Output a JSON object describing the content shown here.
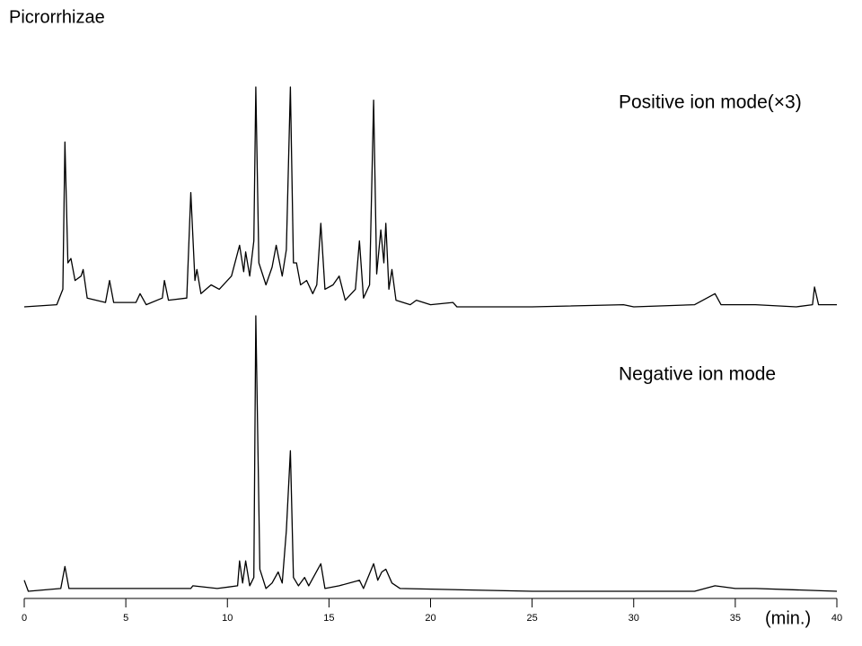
{
  "chart_data": [
    {
      "type": "line",
      "title": "Picrorrhizae",
      "annotation": "Positive ion mode(×3)",
      "color": "#000000",
      "xlim": [
        0,
        40
      ],
      "ylim": [
        0,
        100
      ],
      "x": [
        0,
        1.6,
        1.9,
        2.0,
        2.15,
        2.3,
        2.5,
        2.8,
        2.9,
        3.1,
        4.0,
        4.2,
        4.4,
        5.5,
        5.7,
        6.0,
        6.8,
        6.9,
        7.1,
        8.0,
        8.2,
        8.4,
        8.5,
        8.7,
        9.2,
        9.6,
        10.2,
        10.6,
        10.8,
        10.9,
        11.1,
        11.3,
        11.4,
        11.55,
        11.9,
        12.2,
        12.4,
        12.7,
        12.9,
        13.1,
        13.25,
        13.4,
        13.6,
        13.9,
        14.2,
        14.4,
        14.6,
        14.8,
        15.2,
        15.5,
        15.8,
        16.3,
        16.5,
        16.7,
        17.0,
        17.2,
        17.35,
        17.55,
        17.7,
        17.8,
        17.95,
        18.1,
        18.3,
        19.0,
        19.3,
        20.0,
        21.1,
        21.3,
        25.0,
        29.5,
        30.0,
        33.0,
        34.0,
        34.3,
        36.0,
        38.0,
        38.8,
        38.9,
        39.1,
        40.0
      ],
      "values": [
        0,
        1,
        8,
        75,
        20,
        22,
        12,
        14,
        17,
        4,
        2,
        12,
        2,
        2,
        6,
        1,
        4,
        12,
        3,
        4,
        52,
        12,
        17,
        6,
        10,
        8,
        14,
        28,
        16,
        25,
        14,
        30,
        100,
        20,
        10,
        18,
        28,
        14,
        26,
        100,
        20,
        20,
        10,
        12,
        6,
        10,
        38,
        8,
        10,
        14,
        3,
        8,
        30,
        4,
        10,
        94,
        15,
        35,
        20,
        38,
        8,
        17,
        3,
        1,
        3,
        1,
        2,
        0,
        0,
        1,
        0,
        1,
        6,
        1,
        1,
        0,
        1,
        9,
        1,
        1
      ]
    },
    {
      "type": "line",
      "annotation": "Negative ion mode",
      "color": "#000000",
      "xlim": [
        0,
        40
      ],
      "ylim": [
        0,
        100
      ],
      "xticks": [
        0,
        5,
        10,
        15,
        20,
        25,
        30,
        35,
        40
      ],
      "xlabel": "(min.)",
      "x": [
        0,
        0.2,
        1.8,
        2.0,
        2.2,
        8.2,
        8.3,
        9.5,
        10.5,
        10.6,
        10.75,
        10.9,
        11.1,
        11.3,
        11.4,
        11.6,
        11.9,
        12.2,
        12.5,
        12.7,
        12.9,
        13.1,
        13.25,
        13.5,
        13.8,
        14.0,
        14.6,
        14.8,
        15.5,
        16.5,
        16.7,
        17.2,
        17.4,
        17.6,
        17.8,
        18.1,
        18.5,
        25.0,
        33.0,
        34.0,
        35.0,
        36.0,
        40.0
      ],
      "values": [
        4,
        0,
        1,
        9,
        1,
        1,
        2,
        1,
        2,
        11,
        3,
        11,
        2,
        5,
        100,
        8,
        1,
        3,
        7,
        3,
        22,
        51,
        5,
        2,
        5,
        2,
        10,
        1,
        2,
        4,
        1,
        10,
        4,
        7,
        8,
        3,
        1,
        0,
        0,
        2,
        1,
        1,
        0
      ]
    }
  ]
}
